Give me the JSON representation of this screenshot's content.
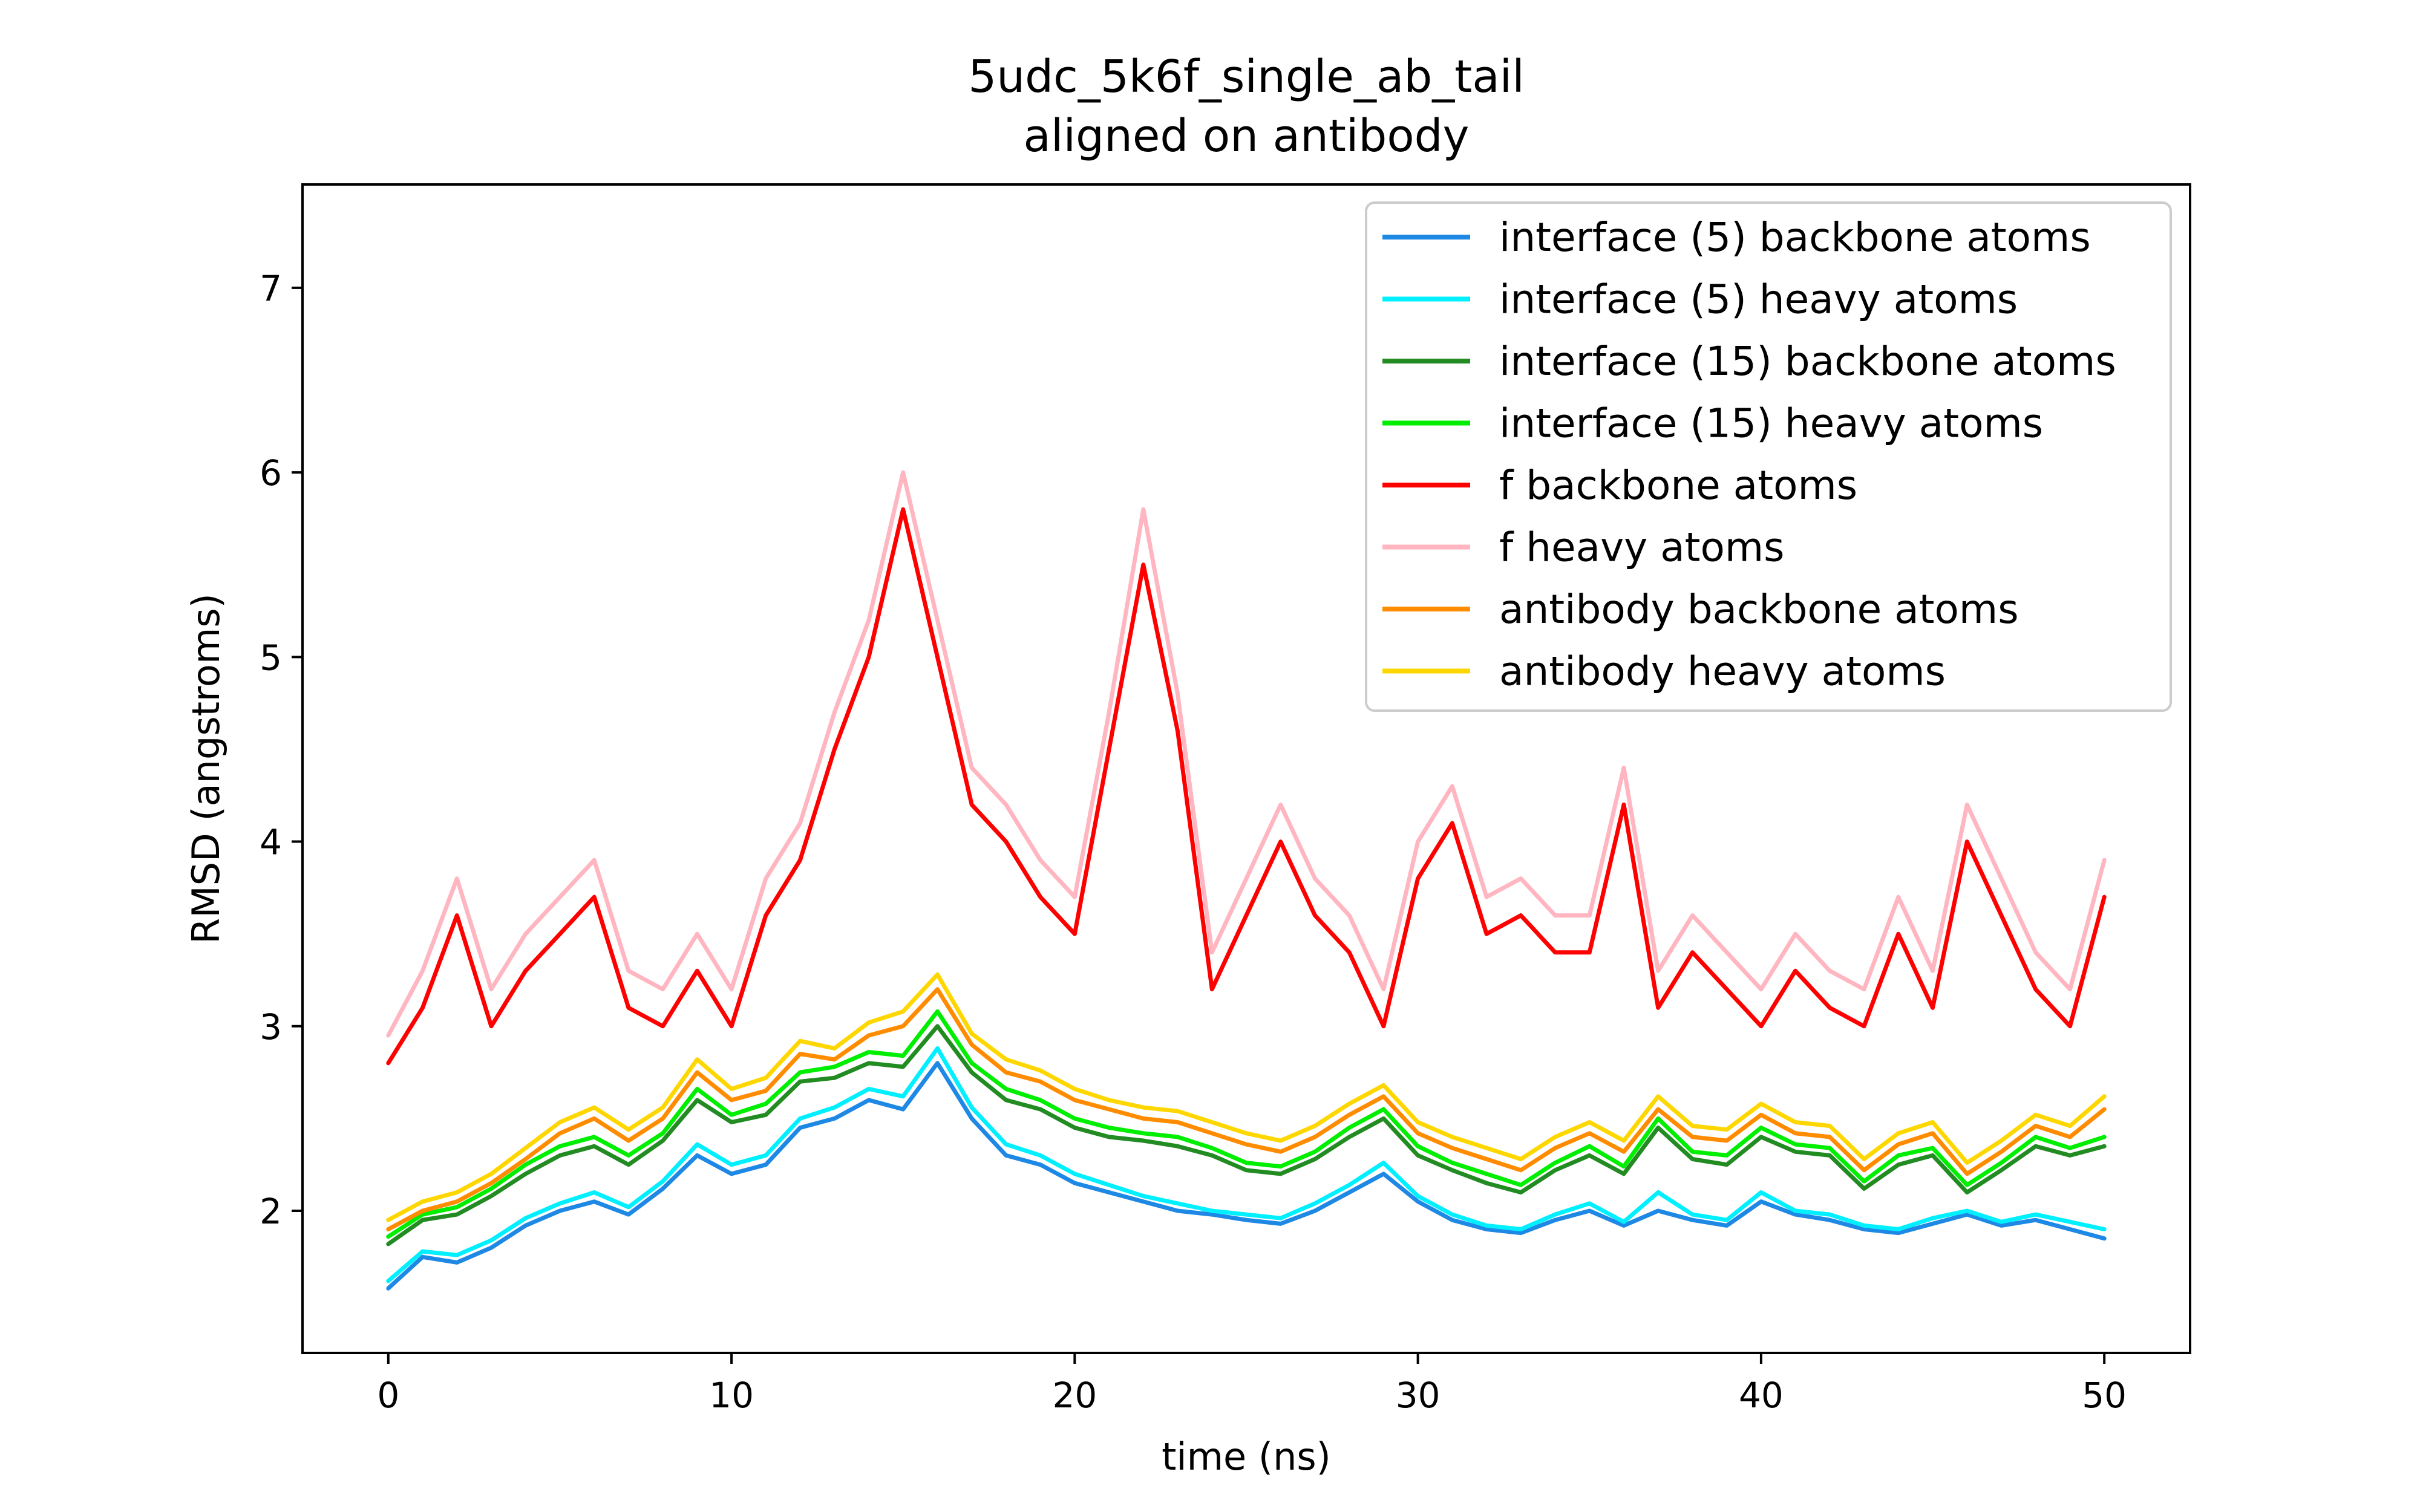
{
  "chart_data": {
    "type": "line",
    "title": "5udc_5k6f_single_ab_tail",
    "subtitle": "aligned on antibody",
    "xlabel": "time (ns)",
    "ylabel": "RMSD (angstroms)",
    "xlim": [
      -2.5,
      52.5
    ],
    "ylim": [
      1.23,
      7.56
    ],
    "xticks": [
      0,
      10,
      20,
      30,
      40,
      50
    ],
    "xtick_labels": [
      "0",
      "10",
      "20",
      "30",
      "40",
      "50"
    ],
    "yticks": [
      2,
      3,
      4,
      5,
      6,
      7
    ],
    "ytick_labels": [
      "2",
      "3",
      "4",
      "5",
      "6",
      "7"
    ],
    "grid": false,
    "legend_position": "top-right",
    "series": [
      {
        "name": "interface (5) backbone atoms",
        "color": "#1e88e5",
        "x": [
          0,
          1,
          2,
          3,
          4,
          5,
          6,
          7,
          8,
          9,
          10,
          11,
          12,
          13,
          14,
          15,
          16,
          17,
          18,
          19,
          20,
          21,
          22,
          23,
          24,
          25,
          26,
          27,
          28,
          29,
          30,
          31,
          32,
          33,
          34,
          35,
          36,
          37,
          38,
          39,
          40,
          41,
          42,
          43,
          44,
          45,
          46,
          47,
          48,
          49,
          50
        ],
        "y": [
          1.58,
          1.75,
          1.72,
          1.8,
          1.92,
          2.0,
          2.05,
          1.98,
          2.12,
          2.3,
          2.2,
          2.25,
          2.45,
          2.5,
          2.6,
          2.55,
          2.8,
          2.5,
          2.3,
          2.25,
          2.15,
          2.1,
          2.05,
          2.0,
          1.98,
          1.95,
          1.93,
          2.0,
          2.1,
          2.2,
          2.05,
          1.95,
          1.9,
          1.88,
          1.95,
          2.0,
          1.92,
          2.0,
          1.95,
          1.92,
          2.05,
          1.98,
          1.95,
          1.9,
          1.88,
          1.93,
          1.98,
          1.92,
          1.95,
          1.9,
          1.85
        ]
      },
      {
        "name": "interface (5) heavy atoms",
        "color": "#00f0ff",
        "x": [
          0,
          1,
          2,
          3,
          4,
          5,
          6,
          7,
          8,
          9,
          10,
          11,
          12,
          13,
          14,
          15,
          16,
          17,
          18,
          19,
          20,
          21,
          22,
          23,
          24,
          25,
          26,
          27,
          28,
          29,
          30,
          31,
          32,
          33,
          34,
          35,
          36,
          37,
          38,
          39,
          40,
          41,
          42,
          43,
          44,
          45,
          46,
          47,
          48,
          49,
          50
        ],
        "y": [
          1.62,
          1.78,
          1.76,
          1.84,
          1.96,
          2.04,
          2.1,
          2.02,
          2.16,
          2.36,
          2.25,
          2.3,
          2.5,
          2.56,
          2.66,
          2.62,
          2.88,
          2.56,
          2.36,
          2.3,
          2.2,
          2.14,
          2.08,
          2.04,
          2.0,
          1.98,
          1.96,
          2.04,
          2.14,
          2.26,
          2.08,
          1.98,
          1.92,
          1.9,
          1.98,
          2.04,
          1.94,
          2.1,
          1.98,
          1.95,
          2.1,
          2.0,
          1.98,
          1.92,
          1.9,
          1.96,
          2.0,
          1.94,
          1.98,
          1.94,
          1.9
        ]
      },
      {
        "name": "interface (15) backbone atoms",
        "color": "#228b22",
        "x": [
          0,
          1,
          2,
          3,
          4,
          5,
          6,
          7,
          8,
          9,
          10,
          11,
          12,
          13,
          14,
          15,
          16,
          17,
          18,
          19,
          20,
          21,
          22,
          23,
          24,
          25,
          26,
          27,
          28,
          29,
          30,
          31,
          32,
          33,
          34,
          35,
          36,
          37,
          38,
          39,
          40,
          41,
          42,
          43,
          44,
          45,
          46,
          47,
          48,
          49,
          50
        ],
        "y": [
          1.82,
          1.95,
          1.98,
          2.08,
          2.2,
          2.3,
          2.35,
          2.25,
          2.38,
          2.6,
          2.48,
          2.52,
          2.7,
          2.72,
          2.8,
          2.78,
          3.0,
          2.75,
          2.6,
          2.55,
          2.45,
          2.4,
          2.38,
          2.35,
          2.3,
          2.22,
          2.2,
          2.28,
          2.4,
          2.5,
          2.3,
          2.22,
          2.15,
          2.1,
          2.22,
          2.3,
          2.2,
          2.45,
          2.28,
          2.25,
          2.4,
          2.32,
          2.3,
          2.12,
          2.25,
          2.3,
          2.1,
          2.22,
          2.35,
          2.3,
          2.35
        ]
      },
      {
        "name": "interface (15) heavy atoms",
        "color": "#00ee00",
        "x": [
          0,
          1,
          2,
          3,
          4,
          5,
          6,
          7,
          8,
          9,
          10,
          11,
          12,
          13,
          14,
          15,
          16,
          17,
          18,
          19,
          20,
          21,
          22,
          23,
          24,
          25,
          26,
          27,
          28,
          29,
          30,
          31,
          32,
          33,
          34,
          35,
          36,
          37,
          38,
          39,
          40,
          41,
          42,
          43,
          44,
          45,
          46,
          47,
          48,
          49,
          50
        ],
        "y": [
          1.86,
          1.98,
          2.02,
          2.12,
          2.25,
          2.35,
          2.4,
          2.3,
          2.42,
          2.66,
          2.52,
          2.58,
          2.75,
          2.78,
          2.86,
          2.84,
          3.08,
          2.8,
          2.66,
          2.6,
          2.5,
          2.45,
          2.42,
          2.4,
          2.34,
          2.26,
          2.24,
          2.32,
          2.45,
          2.55,
          2.35,
          2.26,
          2.2,
          2.14,
          2.26,
          2.35,
          2.24,
          2.5,
          2.32,
          2.3,
          2.45,
          2.36,
          2.34,
          2.16,
          2.3,
          2.34,
          2.14,
          2.26,
          2.4,
          2.34,
          2.4
        ]
      },
      {
        "name": "f backbone atoms",
        "color": "#ff0000",
        "x": [
          0,
          1,
          2,
          3,
          4,
          5,
          6,
          7,
          8,
          9,
          10,
          11,
          12,
          13,
          14,
          15,
          16,
          17,
          18,
          19,
          20,
          21,
          22,
          23,
          24,
          25,
          26,
          27,
          28,
          29,
          30,
          31,
          32,
          33,
          34,
          35,
          36,
          37,
          38,
          39,
          40,
          41,
          42,
          43,
          44,
          45,
          46,
          47,
          48,
          49,
          50
        ],
        "y": [
          2.8,
          3.1,
          3.6,
          3.0,
          3.3,
          3.5,
          3.7,
          3.1,
          3.0,
          3.3,
          3.0,
          3.6,
          3.9,
          4.5,
          5.0,
          5.8,
          5.0,
          4.2,
          4.0,
          3.7,
          3.5,
          4.5,
          5.5,
          4.6,
          3.2,
          3.6,
          4.0,
          3.6,
          3.4,
          3.0,
          3.8,
          4.1,
          3.5,
          3.6,
          3.4,
          3.4,
          4.2,
          3.1,
          3.4,
          3.2,
          3.0,
          3.3,
          3.1,
          3.0,
          3.5,
          3.1,
          4.0,
          3.6,
          3.2,
          3.0,
          3.7
        ]
      },
      {
        "name": "f heavy atoms",
        "color": "#ffb6c1",
        "x": [
          0,
          1,
          2,
          3,
          4,
          5,
          6,
          7,
          8,
          9,
          10,
          11,
          12,
          13,
          14,
          15,
          16,
          17,
          18,
          19,
          20,
          21,
          22,
          23,
          24,
          25,
          26,
          27,
          28,
          29,
          30,
          31,
          32,
          33,
          34,
          35,
          36,
          37,
          38,
          39,
          40,
          41,
          42,
          43,
          44,
          45,
          46,
          47,
          48,
          49,
          50
        ],
        "y": [
          2.95,
          3.3,
          3.8,
          3.2,
          3.5,
          3.7,
          3.9,
          3.3,
          3.2,
          3.5,
          3.2,
          3.8,
          4.1,
          4.7,
          5.2,
          6.0,
          5.2,
          4.4,
          4.2,
          3.9,
          3.7,
          4.7,
          5.8,
          4.8,
          3.4,
          3.8,
          4.2,
          3.8,
          3.6,
          3.2,
          4.0,
          4.3,
          3.7,
          3.8,
          3.6,
          3.6,
          4.4,
          3.3,
          3.6,
          3.4,
          3.2,
          3.5,
          3.3,
          3.2,
          3.7,
          3.3,
          4.2,
          3.8,
          3.4,
          3.2,
          3.9
        ]
      },
      {
        "name": "antibody backbone atoms",
        "color": "#ff8c00",
        "x": [
          0,
          1,
          2,
          3,
          4,
          5,
          6,
          7,
          8,
          9,
          10,
          11,
          12,
          13,
          14,
          15,
          16,
          17,
          18,
          19,
          20,
          21,
          22,
          23,
          24,
          25,
          26,
          27,
          28,
          29,
          30,
          31,
          32,
          33,
          34,
          35,
          36,
          37,
          38,
          39,
          40,
          41,
          42,
          43,
          44,
          45,
          46,
          47,
          48,
          49,
          50
        ],
        "y": [
          1.9,
          2.0,
          2.05,
          2.15,
          2.28,
          2.42,
          2.5,
          2.38,
          2.5,
          2.75,
          2.6,
          2.65,
          2.85,
          2.82,
          2.95,
          3.0,
          3.2,
          2.9,
          2.75,
          2.7,
          2.6,
          2.55,
          2.5,
          2.48,
          2.42,
          2.36,
          2.32,
          2.4,
          2.52,
          2.62,
          2.42,
          2.34,
          2.28,
          2.22,
          2.34,
          2.42,
          2.32,
          2.55,
          2.4,
          2.38,
          2.52,
          2.42,
          2.4,
          2.22,
          2.36,
          2.42,
          2.2,
          2.32,
          2.46,
          2.4,
          2.55
        ]
      },
      {
        "name": "antibody heavy atoms",
        "color": "#ffd700",
        "x": [
          0,
          1,
          2,
          3,
          4,
          5,
          6,
          7,
          8,
          9,
          10,
          11,
          12,
          13,
          14,
          15,
          16,
          17,
          18,
          19,
          20,
          21,
          22,
          23,
          24,
          25,
          26,
          27,
          28,
          29,
          30,
          31,
          32,
          33,
          34,
          35,
          36,
          37,
          38,
          39,
          40,
          41,
          42,
          43,
          44,
          45,
          46,
          47,
          48,
          49,
          50
        ],
        "y": [
          1.95,
          2.05,
          2.1,
          2.2,
          2.34,
          2.48,
          2.56,
          2.44,
          2.56,
          2.82,
          2.66,
          2.72,
          2.92,
          2.88,
          3.02,
          3.08,
          3.28,
          2.96,
          2.82,
          2.76,
          2.66,
          2.6,
          2.56,
          2.54,
          2.48,
          2.42,
          2.38,
          2.46,
          2.58,
          2.68,
          2.48,
          2.4,
          2.34,
          2.28,
          2.4,
          2.48,
          2.38,
          2.62,
          2.46,
          2.44,
          2.58,
          2.48,
          2.46,
          2.28,
          2.42,
          2.48,
          2.26,
          2.38,
          2.52,
          2.46,
          2.62
        ]
      }
    ]
  }
}
